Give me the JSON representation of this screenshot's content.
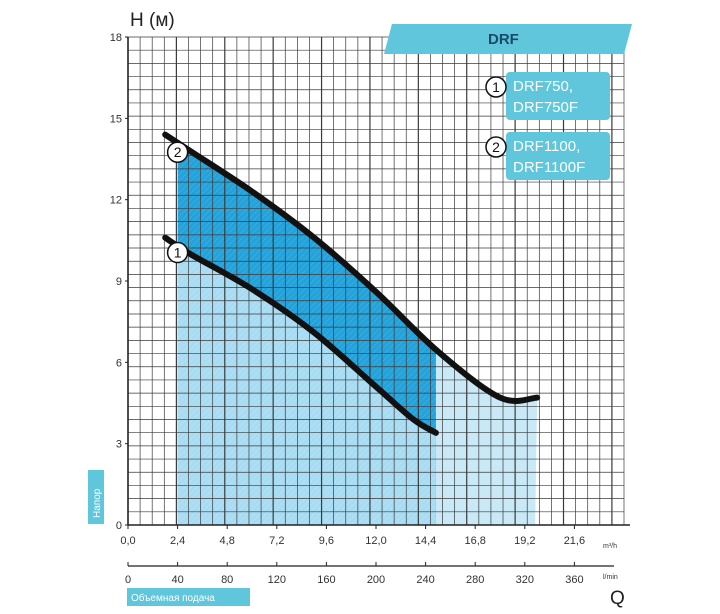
{
  "chart_data": {
    "type": "line",
    "brand": "DRF",
    "ylabel": "H (м)",
    "side_label": "Напор",
    "bottom_label": "Объемная подача",
    "q_label": "Q",
    "x_unit": "m³/h",
    "x2_unit": "l/min",
    "xlim": [
      0,
      24
    ],
    "ylim": [
      0,
      18
    ],
    "x_ticks": [
      "0,0",
      "2,4",
      "4,8",
      "7,2",
      "9,6",
      "12,0",
      "14,4",
      "16,8",
      "19,2",
      "21,6"
    ],
    "x2_ticks": [
      "0",
      "40",
      "80",
      "120",
      "160",
      "200",
      "240",
      "280",
      "320",
      "360"
    ],
    "y_ticks": [
      "0",
      "3",
      "6",
      "9",
      "12",
      "15",
      "18"
    ],
    "grid": true,
    "series": [
      {
        "name": "DRF750, DRF750F",
        "marker": "1",
        "x": [
          1.8,
          3.0,
          6.0,
          9.0,
          12.0,
          13.8,
          14.9
        ],
        "y": [
          10.6,
          10.0,
          8.7,
          7.1,
          5.1,
          3.9,
          3.4
        ]
      },
      {
        "name": "DRF1100, DRF1100F",
        "marker": "2",
        "x": [
          1.8,
          3.0,
          6.0,
          9.0,
          12.0,
          15.0,
          18.0,
          19.8
        ],
        "y": [
          14.4,
          13.8,
          12.3,
          10.6,
          8.6,
          6.4,
          4.7,
          4.7
        ]
      }
    ],
    "legend": [
      {
        "marker": "1",
        "lines": [
          "DRF750,",
          "DRF750F"
        ]
      },
      {
        "marker": "2",
        "lines": [
          "DRF1100,",
          "DRF1100F"
        ]
      }
    ],
    "colors": {
      "grid": "#3a3a3a",
      "curve": "#111111",
      "fill_dark": "#1b9ed8",
      "fill_light": "#c9e9f7",
      "tag": "#5fc6dc"
    }
  }
}
